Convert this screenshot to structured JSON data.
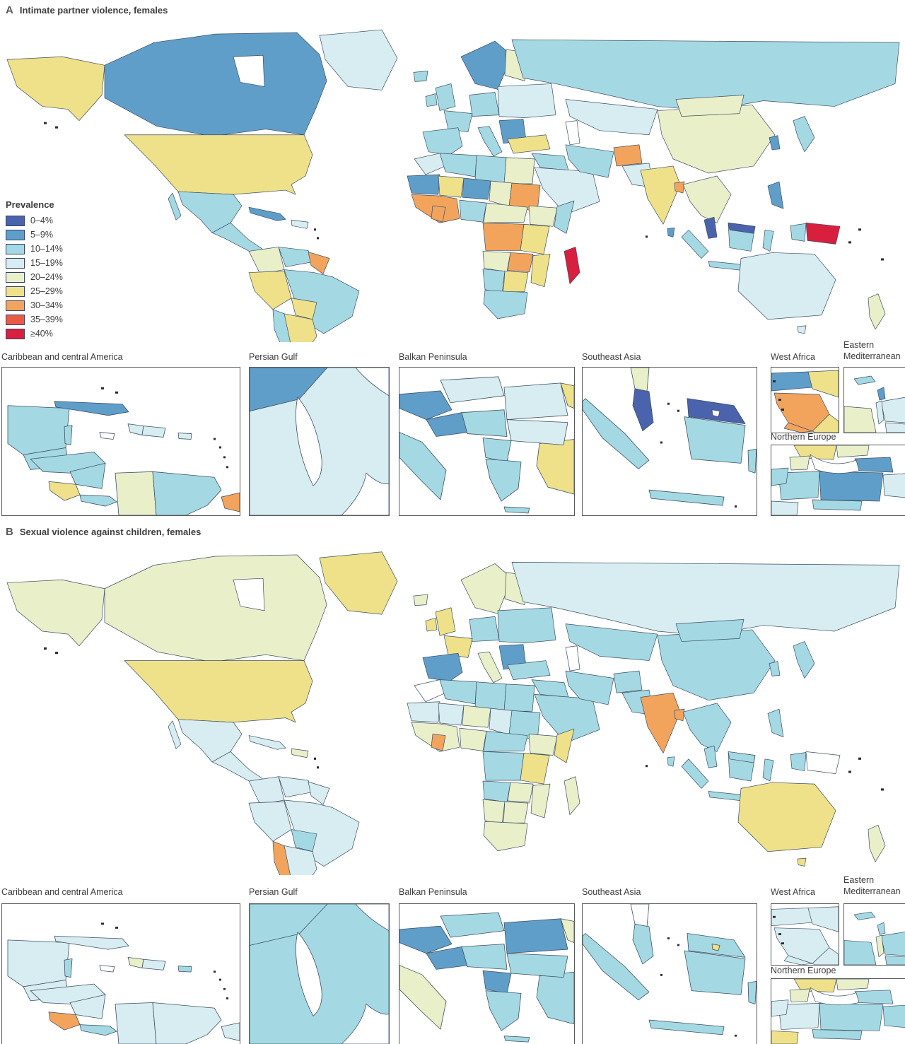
{
  "panels": {
    "a": {
      "letter": "A",
      "title": "Intimate partner violence, females"
    },
    "b": {
      "letter": "B",
      "title": "Sexual violence against children, females"
    }
  },
  "legend": {
    "title": "Prevalence",
    "no_data_color": "#ffffff",
    "items": [
      {
        "label": "0–4%",
        "color": "#4a63ac"
      },
      {
        "label": "5–9%",
        "color": "#5f9ec9"
      },
      {
        "label": "10–14%",
        "color": "#a4d9e4"
      },
      {
        "label": "15–19%",
        "color": "#d8edf1"
      },
      {
        "label": "20–24%",
        "color": "#e9efc9"
      },
      {
        "label": "25–29%",
        "color": "#efe189"
      },
      {
        "label": "30–34%",
        "color": "#f3a45c"
      },
      {
        "label": "35–39%",
        "color": "#ea5b45"
      },
      {
        "label": "≥40%",
        "color": "#d81f3e"
      }
    ]
  },
  "insets": {
    "caribbean": {
      "label": "Caribbean and central America"
    },
    "persian_gulf": {
      "label": "Persian Gulf"
    },
    "balkan": {
      "label": "Balkan Peninsula"
    },
    "southeast_asia": {
      "label": "Southeast Asia"
    },
    "west_africa": {
      "label": "West Africa"
    },
    "eastern_mediterranean": {
      "label": "Eastern Mediterranean"
    },
    "northern_europe": {
      "label": "Northern Europe"
    }
  },
  "regions": {
    "world": {
      "alaska": [
        5,
        4
      ],
      "canada": [
        1,
        4
      ],
      "greenland": [
        3,
        5
      ],
      "iceland": [
        2,
        4
      ],
      "usa": [
        5,
        5
      ],
      "mexico": [
        2,
        3
      ],
      "central_america": [
        2,
        3
      ],
      "cuba": [
        1,
        3
      ],
      "hispaniola": [
        3,
        4
      ],
      "colombia": [
        4,
        3
      ],
      "venezuela": [
        2,
        3
      ],
      "guyana": [
        6,
        3
      ],
      "brazil": [
        2,
        3
      ],
      "peru": [
        5,
        3
      ],
      "bolivia": [
        5,
        2
      ],
      "chile": [
        2,
        6
      ],
      "argentina": [
        5,
        3
      ],
      "scandinavia": [
        1,
        4
      ],
      "finland": [
        4,
        4
      ],
      "uk": [
        2,
        5
      ],
      "ireland": [
        2,
        5
      ],
      "iberia": [
        2,
        1
      ],
      "france": [
        2,
        5
      ],
      "germany": [
        2,
        2
      ],
      "italy": [
        2,
        4
      ],
      "balkans_eu": [
        1,
        1
      ],
      "east_europe": [
        3,
        2
      ],
      "russia": [
        2,
        3
      ],
      "kazakh": [
        3,
        2
      ],
      "turkey": [
        5,
        2
      ],
      "syria_iraq": [
        2,
        2
      ],
      "saudi": [
        3,
        2
      ],
      "iran": [
        2,
        2
      ],
      "afghanistan": [
        6,
        2
      ],
      "pakistan": [
        3,
        2
      ],
      "india": [
        5,
        6
      ],
      "sri_lanka": [
        1,
        2
      ],
      "bangladesh": [
        6,
        6
      ],
      "china": [
        4,
        2
      ],
      "mongolia": [
        4,
        2
      ],
      "korea": [
        1,
        2
      ],
      "japan": [
        2,
        2
      ],
      "se_mainland": [
        4,
        2
      ],
      "malay_pen": [
        0,
        2
      ],
      "philippines": [
        1,
        2
      ],
      "indonesia": [
        2,
        2
      ],
      "malaysia_borneo": [
        0,
        2
      ],
      "png": [
        8,
        null
      ],
      "australia": [
        3,
        5
      ],
      "tasmania": [
        3,
        5
      ],
      "nz": [
        4,
        4
      ],
      "morocco": [
        3,
        null
      ],
      "algeria": [
        2,
        2
      ],
      "libya": [
        2,
        2
      ],
      "egypt": [
        4,
        2
      ],
      "mauritania_senegal": [
        1,
        3
      ],
      "mali": [
        5,
        3
      ],
      "niger": [
        1,
        4
      ],
      "chad": [
        4,
        3
      ],
      "sudan": [
        6,
        2
      ],
      "wafrica_coast": [
        6,
        4
      ],
      "cote_divoire": [
        6,
        6
      ],
      "nigeria": [
        2,
        4
      ],
      "cameroon_car": [
        4,
        2
      ],
      "ethiopia": [
        4,
        4
      ],
      "somalia": [
        2,
        5
      ],
      "drc": [
        6,
        2
      ],
      "east_africa": [
        5,
        5
      ],
      "angola": [
        4,
        2
      ],
      "zambia": [
        6,
        4
      ],
      "mozambique": [
        5,
        4
      ],
      "namibia": [
        2,
        4
      ],
      "botswana": [
        5,
        4
      ],
      "south_africa": [
        2,
        4
      ],
      "madagascar": [
        8,
        4
      ]
    },
    "caribbean": {
      "yucatan": [
        2,
        3
      ],
      "belize": [
        2,
        2
      ],
      "guatemala": [
        2,
        3
      ],
      "honduras": [
        2,
        3
      ],
      "nicaragua": [
        2,
        3
      ],
      "costa_rica": [
        5,
        6
      ],
      "panama": [
        2,
        2
      ],
      "cuba": [
        1,
        3
      ],
      "haiti": [
        3,
        4
      ],
      "dominican_republic": [
        3,
        3
      ],
      "puerto_rico": [
        3,
        2
      ],
      "jamaica": [
        null,
        null
      ],
      "colombia": [
        4,
        3
      ],
      "venezuela": [
        2,
        3
      ],
      "guyana": [
        6,
        3
      ]
    },
    "persian_gulf": {
      "iran_corner": [
        1,
        2
      ],
      "peninsula": [
        3,
        2
      ]
    },
    "balkan": {
      "italy": [
        2,
        4
      ],
      "slovenia_croatia": [
        1,
        1
      ],
      "bosnia": [
        1,
        1
      ],
      "serbia": [
        2,
        2
      ],
      "hungary": [
        3,
        2
      ],
      "romania": [
        3,
        1
      ],
      "moldova": [
        5,
        4
      ],
      "bulgaria": [
        3,
        2
      ],
      "albania_mk": [
        2,
        1
      ],
      "greece": [
        2,
        2
      ],
      "turkey": [
        5,
        2
      ],
      "crete": [
        2,
        2
      ]
    },
    "southeast_asia": {
      "thailand": [
        4,
        null
      ],
      "malay_peninsula": [
        0,
        2
      ],
      "sumatra": [
        2,
        2
      ],
      "malaysia_borneo": [
        0,
        2
      ],
      "brunei": [
        null,
        5
      ],
      "indonesia_borneo": [
        2,
        2
      ],
      "java": [
        2,
        2
      ],
      "sulawesi": [
        2,
        2
      ]
    },
    "west_africa": {
      "senegal": [
        1,
        3
      ],
      "mali": [
        5,
        3
      ],
      "guinea": [
        6,
        3
      ],
      "sierra_leone": [
        6,
        3
      ],
      "liberia": [
        5,
        3
      ]
    },
    "eastern_mediterranean": {
      "cyprus": [
        2,
        2
      ],
      "lebanon": [
        1,
        2
      ],
      "israel": [
        3,
        4
      ],
      "jordan": [
        3,
        2
      ],
      "egypt": [
        4,
        2
      ],
      "saudi": [
        3,
        2
      ]
    },
    "northern_europe": {
      "sweden": [
        5,
        5
      ],
      "finland": [
        4,
        4
      ],
      "baltics": [
        1,
        2
      ],
      "denmark": [
        4,
        4
      ],
      "germany": [
        2,
        3
      ],
      "netherlands": [
        2,
        3
      ],
      "poland": [
        1,
        2
      ],
      "belarus": [
        3,
        2
      ],
      "czech": [
        2,
        2
      ],
      "france": [
        3,
        5
      ]
    }
  }
}
